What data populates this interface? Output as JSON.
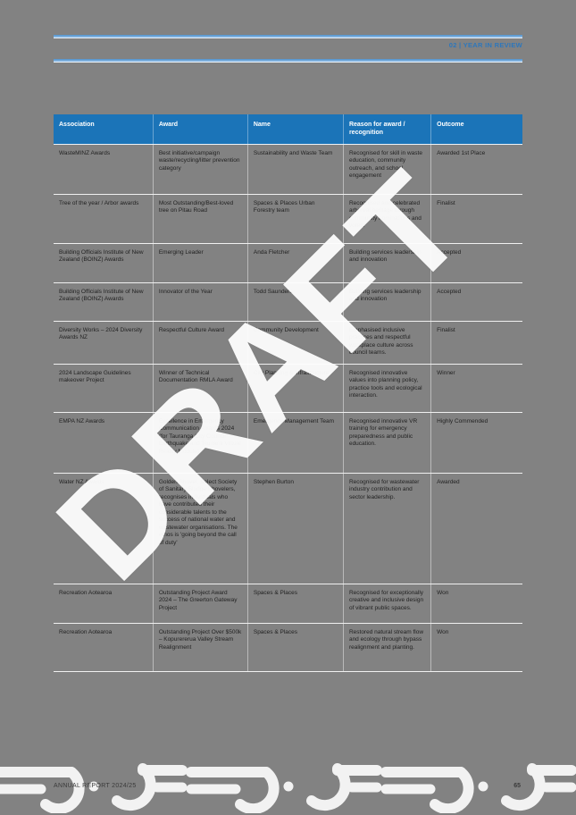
{
  "page": {
    "header": {
      "label": "02 | YEAR IN REVIEW"
    },
    "watermark": "DRAFT",
    "footer": {
      "left": "ANNUAL REPORT 2024/25",
      "page_number": "65"
    }
  },
  "table": {
    "columns": [
      "Association",
      "Award",
      "Name",
      "Reason for award / recognition",
      "Outcome"
    ],
    "rows": [
      {
        "association": "WasteMINZ Awards",
        "award": "Best initiative/campaign waste/recycling/litter prevention category",
        "name": "Sustainability and Waste Team",
        "reason": "Recognised for skill in waste education, community outreach, and school engagement",
        "outcome": "Awarded 1st Place"
      },
      {
        "association": "Tree of the year / Arbor awards",
        "award": "Most Outstanding/Best-loved tree on Pitau Road",
        "name": "Spaces & Places Urban Forestry team",
        "reason": "Recognised and celebrated arboreal heritage through community nominations and votes.",
        "outcome": "Finalist"
      },
      {
        "association": "Building Officials Institute of New Zealand (BOINZ) Awards",
        "award": "Emerging Leader",
        "name": "Anda Fletcher",
        "reason": "Building services leadership and innovation",
        "outcome": "Accepted"
      },
      {
        "association": "Building Officials Institute of New Zealand (BOINZ) Awards",
        "award": "Innovator of the Year",
        "name": "Todd Saunders",
        "reason": "Building services leadership and innovation",
        "outcome": "Accepted"
      },
      {
        "association": "Diversity Works – 2024 Diversity Awards NZ",
        "award": "Respectful Culture Award",
        "name": "Community Development",
        "reason": "Emphasised inclusive practices and respectful workplace culture across council teams.",
        "outcome": "Finalist"
      },
      {
        "association": "2024 Landscape Guidelines makeover Project",
        "award": "Winner of Technical Documentation RMLA Award",
        "name": "City Planning & Infrastructure",
        "reason": "Recognised innovative values into planning policy, practice tools and ecological interaction.",
        "outcome": "Winner"
      },
      {
        "association": "EMPA NZ Awards",
        "award": "Excellence in Emergency Communication Awards 2024 (for Tauranga City Council Earthquake and Tsunami Virtual Reality Module)",
        "name": "Emergency Management Team",
        "reason": "Recognised innovative VR training for emergency preparedness and public education.",
        "outcome": "Highly Commended"
      },
      {
        "association": "Water NZ Awards",
        "award": "Golden Shovel, Select Society of Sanitary Sludge Shovelers, recognises individuals who have contributed their considerable talents to the success of national water and wastewater organisations. The ethos is 'going beyond the call of duty'",
        "name": "Stephen Burton",
        "reason": "Recognised for wastewater industry contribution and sector leadership.",
        "outcome": "Awarded"
      },
      {
        "association": "Recreation Aotearoa",
        "award": "Outstanding Project Award 2024 – The Greerton Gateway Project",
        "name": "Spaces & Places",
        "reason": "Recognised for exceptionally creative and inclusive design of vibrant public spaces.",
        "outcome": "Won"
      },
      {
        "association": "Recreation Aotearoa",
        "award": "Outstanding Project Over $500k – Kopurererua Valley Stream Realignment",
        "name": "Spaces & Places",
        "reason": "Restored natural stream flow and ecology through bypass realignment and planting.",
        "outcome": "Won"
      }
    ]
  },
  "colors": {
    "page_bg": "#828282",
    "table_header_blue": "#1b74b8",
    "rule_blue": "#5b9bd5",
    "header_text_blue": "#2e77bb",
    "body_text": "#222222",
    "watermark": "#ffffff",
    "pattern": "#f2f2f2"
  }
}
